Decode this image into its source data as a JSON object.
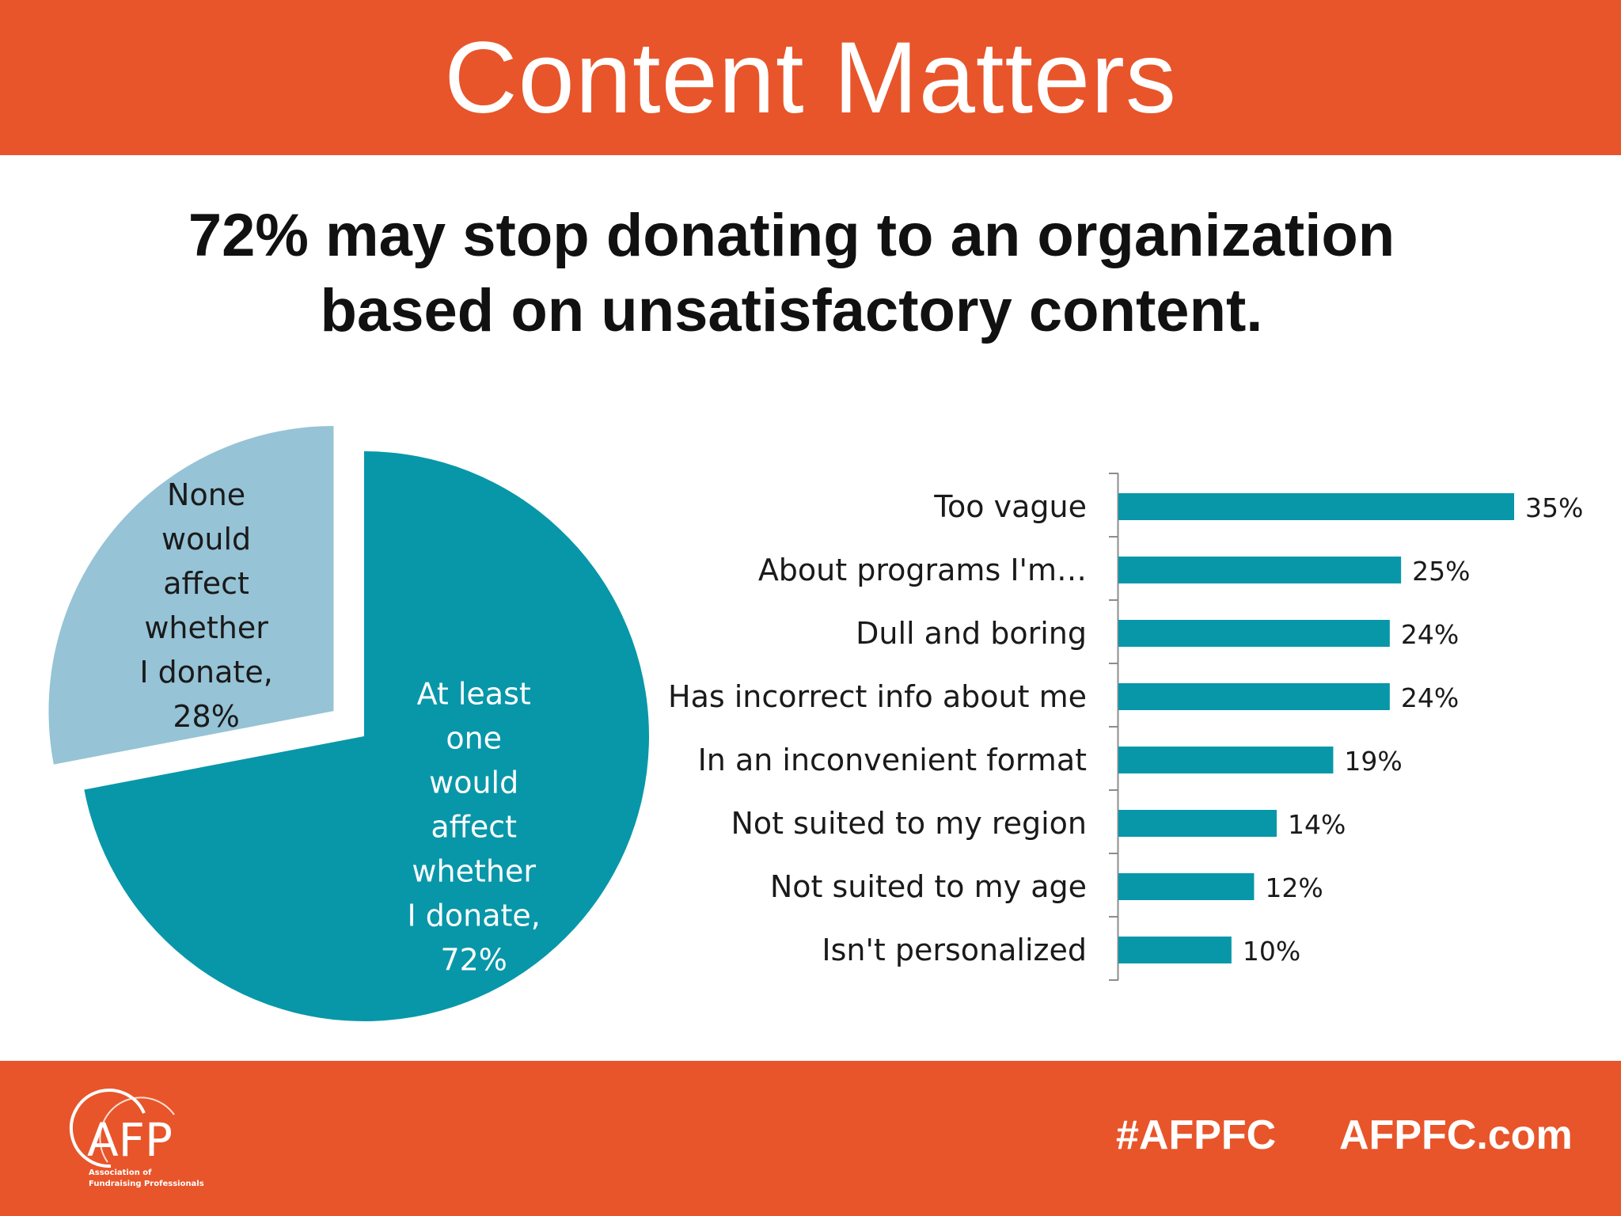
{
  "header": {
    "title": "Content Matters"
  },
  "headline": {
    "line1": "72% may stop donating to an organization",
    "line2": "based on unsatisfactory content."
  },
  "colors": {
    "brand_orange": "#e8552a",
    "teal": "#0897a9",
    "light_blue": "#96c3d6"
  },
  "chart_data": [
    {
      "type": "pie",
      "slices": [
        {
          "label_lines": [
            "None",
            "would",
            "affect",
            "whether",
            "I donate,",
            "28%"
          ],
          "value": 28,
          "color": "#96c3d6",
          "exploded": true
        },
        {
          "label_lines": [
            "At least",
            "one",
            "would",
            "affect",
            "whether",
            "I donate,",
            "72%"
          ],
          "value": 72,
          "color": "#0897a9",
          "exploded": false
        }
      ]
    },
    {
      "type": "bar",
      "orientation": "horizontal",
      "categories": [
        "Too vague",
        "About programs I'm…",
        "Dull and boring",
        "Has incorrect info about me",
        "In an inconvenient format",
        "Not suited to my region",
        "Not suited to my age",
        "Isn't personalized"
      ],
      "values": [
        35,
        25,
        24,
        24,
        19,
        14,
        12,
        10
      ],
      "value_labels": [
        "35%",
        "25%",
        "24%",
        "24%",
        "19%",
        "14%",
        "12%",
        "10%"
      ],
      "color": "#0897a9",
      "xlim": [
        0,
        35
      ]
    }
  ],
  "footer": {
    "logo_text": "AFP",
    "logo_subtitle_1": "Association of",
    "logo_subtitle_2": "Fundraising Professionals",
    "hashtag": "#AFPFC",
    "website": "AFPFC.com"
  }
}
